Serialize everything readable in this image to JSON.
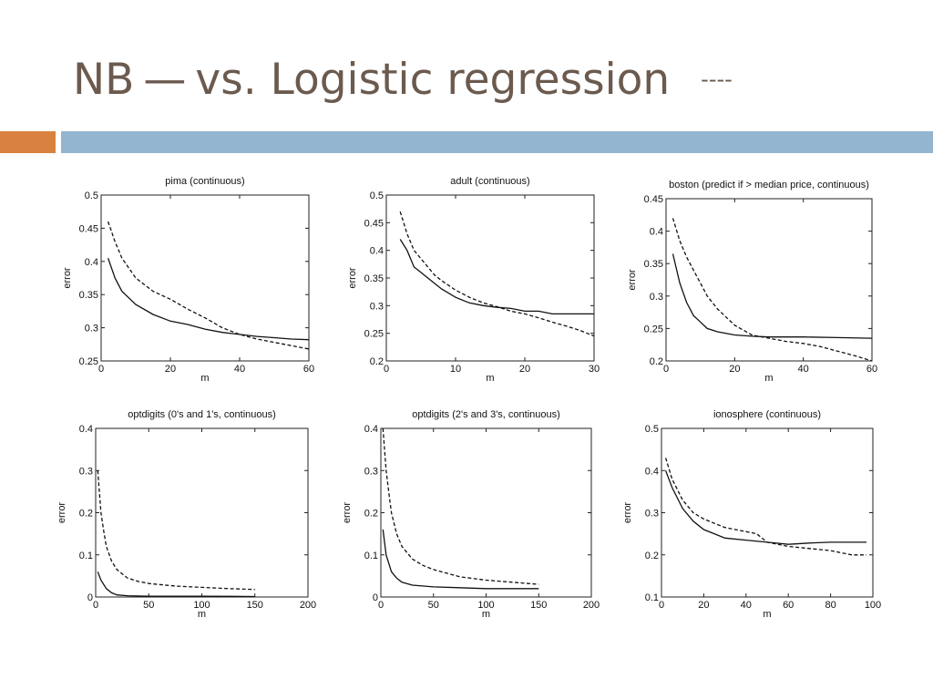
{
  "slide": {
    "title_left": "NB",
    "title_dash": "—",
    "title_right": "vs. Logistic regression",
    "title_tail": "----"
  },
  "colors": {
    "title": "#6b5a4e",
    "accent_orange": "#d9823f",
    "accent_blue": "#93b5d0"
  },
  "chart_data": [
    {
      "type": "line",
      "title": "pima (continuous)",
      "xlabel": "m",
      "ylabel": "error",
      "xlim": [
        0,
        60
      ],
      "ylim": [
        0.25,
        0.5
      ],
      "xticks": [
        0,
        20,
        40,
        60
      ],
      "yticks": [
        0.25,
        0.3,
        0.35,
        0.4,
        0.45,
        0.5
      ],
      "ytick_labels": [
        "0.25",
        "0.3",
        "0.35",
        "0.4",
        "0.45",
        "0.5"
      ],
      "series": [
        {
          "style": "solid",
          "x": [
            2,
            4,
            6,
            8,
            10,
            15,
            20,
            25,
            30,
            35,
            40,
            45,
            50,
            55,
            60
          ],
          "y": [
            0.405,
            0.375,
            0.355,
            0.345,
            0.335,
            0.32,
            0.31,
            0.305,
            0.298,
            0.293,
            0.29,
            0.287,
            0.285,
            0.283,
            0.282
          ]
        },
        {
          "style": "dashed",
          "x": [
            2,
            4,
            6,
            8,
            10,
            15,
            20,
            25,
            30,
            35,
            40,
            45,
            50,
            55,
            60
          ],
          "y": [
            0.46,
            0.43,
            0.405,
            0.39,
            0.375,
            0.355,
            0.343,
            0.328,
            0.315,
            0.3,
            0.29,
            0.283,
            0.278,
            0.273,
            0.268
          ]
        }
      ]
    },
    {
      "type": "line",
      "title": "adult (continuous)",
      "xlabel": "m",
      "ylabel": "error",
      "xlim": [
        0,
        30
      ],
      "ylim": [
        0.2,
        0.5
      ],
      "xticks": [
        0,
        10,
        20,
        30
      ],
      "yticks": [
        0.2,
        0.25,
        0.3,
        0.35,
        0.4,
        0.45,
        0.5
      ],
      "ytick_labels": [
        "0.2",
        "0.25",
        "0.3",
        "0.35",
        "0.4",
        "0.45",
        "0.5"
      ],
      "series": [
        {
          "style": "solid",
          "x": [
            2,
            3,
            4,
            5,
            6,
            7,
            8,
            10,
            12,
            14,
            16,
            18,
            20,
            22,
            24,
            26,
            28,
            30
          ],
          "y": [
            0.42,
            0.4,
            0.37,
            0.36,
            0.35,
            0.34,
            0.33,
            0.315,
            0.305,
            0.3,
            0.297,
            0.295,
            0.29,
            0.29,
            0.285,
            0.285,
            0.285,
            0.285
          ]
        },
        {
          "style": "dashed",
          "x": [
            2,
            3,
            4,
            5,
            6,
            7,
            8,
            10,
            12,
            14,
            16,
            18,
            20,
            22,
            24,
            26,
            28,
            30
          ],
          "y": [
            0.47,
            0.43,
            0.4,
            0.385,
            0.37,
            0.355,
            0.345,
            0.328,
            0.315,
            0.305,
            0.298,
            0.29,
            0.285,
            0.278,
            0.27,
            0.263,
            0.255,
            0.245
          ]
        }
      ]
    },
    {
      "type": "line",
      "title": "boston (predict if > median price, continuous)",
      "xlabel": "m",
      "ylabel": "error",
      "xlim": [
        0,
        60
      ],
      "ylim": [
        0.2,
        0.45
      ],
      "xticks": [
        0,
        20,
        40,
        60
      ],
      "yticks": [
        0.2,
        0.25,
        0.3,
        0.35,
        0.4,
        0.45
      ],
      "ytick_labels": [
        "0.2",
        "0.25",
        "0.3",
        "0.35",
        "0.4",
        "0.45"
      ],
      "series": [
        {
          "style": "solid",
          "x": [
            2,
            4,
            6,
            8,
            10,
            12,
            15,
            20,
            25,
            30,
            40,
            50,
            60
          ],
          "y": [
            0.365,
            0.32,
            0.29,
            0.27,
            0.26,
            0.25,
            0.245,
            0.24,
            0.238,
            0.237,
            0.237,
            0.236,
            0.235
          ]
        },
        {
          "style": "dashed",
          "x": [
            2,
            4,
            6,
            8,
            10,
            12,
            15,
            20,
            25,
            30,
            35,
            40,
            45,
            50,
            55,
            60
          ],
          "y": [
            0.42,
            0.385,
            0.36,
            0.34,
            0.32,
            0.3,
            0.28,
            0.255,
            0.24,
            0.235,
            0.23,
            0.227,
            0.222,
            0.215,
            0.208,
            0.2
          ]
        }
      ]
    },
    {
      "type": "line",
      "title": "optdigits (0's and 1's, continuous)",
      "xlabel": "m",
      "ylabel": "error",
      "xlim": [
        0,
        200
      ],
      "ylim": [
        0,
        0.4
      ],
      "xticks": [
        0,
        50,
        100,
        150,
        200
      ],
      "yticks": [
        0,
        0.1,
        0.2,
        0.3,
        0.4
      ],
      "ytick_labels": [
        "0",
        "0.1",
        "0.2",
        "0.3",
        "0.4"
      ],
      "series": [
        {
          "style": "solid",
          "x": [
            2,
            5,
            10,
            15,
            20,
            30,
            50,
            100,
            150
          ],
          "y": [
            0.06,
            0.04,
            0.02,
            0.01,
            0.005,
            0.003,
            0.002,
            0.002,
            0.001
          ]
        },
        {
          "style": "dashed",
          "x": [
            2,
            5,
            8,
            10,
            15,
            20,
            30,
            40,
            50,
            75,
            100,
            125,
            150
          ],
          "y": [
            0.3,
            0.2,
            0.15,
            0.12,
            0.085,
            0.065,
            0.045,
            0.037,
            0.032,
            0.026,
            0.023,
            0.02,
            0.018
          ]
        }
      ]
    },
    {
      "type": "line",
      "title": "optdigits (2's and 3's, continuous)",
      "xlabel": "m",
      "ylabel": "error",
      "xlim": [
        0,
        200
      ],
      "ylim": [
        0,
        0.4
      ],
      "xticks": [
        0,
        50,
        100,
        150,
        200
      ],
      "yticks": [
        0,
        0.1,
        0.2,
        0.3,
        0.4
      ],
      "ytick_labels": [
        "0",
        "0.1",
        "0.2",
        "0.3",
        "0.4"
      ],
      "series": [
        {
          "style": "solid",
          "x": [
            2,
            5,
            10,
            15,
            20,
            30,
            50,
            75,
            100,
            125,
            150
          ],
          "y": [
            0.16,
            0.1,
            0.06,
            0.045,
            0.035,
            0.028,
            0.024,
            0.022,
            0.02,
            0.02,
            0.02
          ]
        },
        {
          "style": "dashed",
          "x": [
            2,
            5,
            8,
            10,
            15,
            20,
            30,
            40,
            50,
            75,
            100,
            125,
            150
          ],
          "y": [
            0.4,
            0.3,
            0.24,
            0.2,
            0.15,
            0.12,
            0.09,
            0.075,
            0.065,
            0.048,
            0.04,
            0.035,
            0.03
          ]
        }
      ]
    },
    {
      "type": "line",
      "title": "ionosphere (continuous)",
      "xlabel": "m",
      "ylabel": "error",
      "xlim": [
        0,
        100
      ],
      "ylim": [
        0.1,
        0.5
      ],
      "xticks": [
        0,
        20,
        40,
        60,
        80,
        100
      ],
      "yticks": [
        0.1,
        0.2,
        0.3,
        0.4,
        0.5
      ],
      "ytick_labels": [
        "0.1",
        "0.2",
        "0.3",
        "0.4",
        "0.5"
      ],
      "series": [
        {
          "style": "solid",
          "x": [
            2,
            5,
            10,
            15,
            20,
            25,
            30,
            40,
            50,
            60,
            70,
            80,
            90,
            97
          ],
          "y": [
            0.4,
            0.36,
            0.31,
            0.28,
            0.26,
            0.25,
            0.24,
            0.235,
            0.23,
            0.225,
            0.228,
            0.23,
            0.23,
            0.23
          ]
        },
        {
          "style": "dashed",
          "x": [
            2,
            5,
            10,
            15,
            20,
            25,
            30,
            40,
            45,
            50,
            60,
            70,
            80,
            90,
            97
          ],
          "y": [
            0.43,
            0.38,
            0.33,
            0.3,
            0.285,
            0.275,
            0.265,
            0.255,
            0.25,
            0.23,
            0.22,
            0.215,
            0.21,
            0.2,
            0.2
          ]
        }
      ]
    }
  ]
}
